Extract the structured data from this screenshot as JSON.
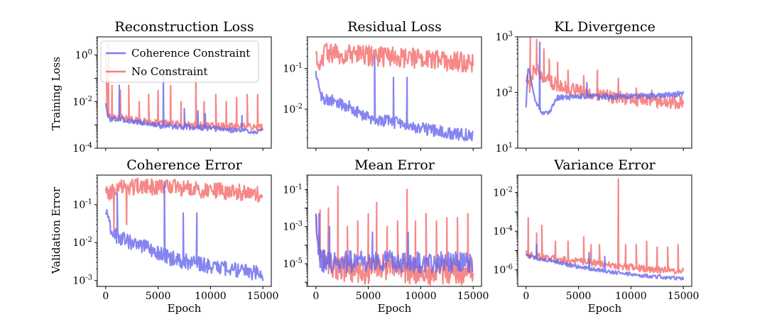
{
  "figure": {
    "xlabel": "Epoch",
    "row_ylabels": [
      "Training Loss",
      "Validation Error"
    ],
    "legend": [
      {
        "label": "Coherence Constraint",
        "color": "#6666ee"
      },
      {
        "label": "No Constraint",
        "color": "#f46a6a"
      }
    ],
    "overlap_color": "#a8306e"
  },
  "chart_data": [
    {
      "type": "line",
      "title": "Reconstruction Loss",
      "yscale": "log",
      "xlim": [
        -800,
        15800
      ],
      "ylim": [
        0.0001,
        6
      ],
      "yticks": [
        0.0001,
        0.01,
        1
      ],
      "ytick_labels": [
        "10^-4",
        "10^-2",
        "10^0"
      ],
      "xticks": [
        0,
        5000,
        10000,
        15000
      ],
      "xtick_labels": [],
      "series": [
        {
          "name": "Coherence Constraint",
          "color": "#6666ee",
          "noise": 0.12,
          "x": [
            0,
            150,
            400,
            2000,
            5000,
            8000,
            11000,
            15000
          ],
          "values": [
            0.01,
            0.0025,
            0.0018,
            0.0016,
            0.00095,
            0.0008,
            0.00065,
            0.0005
          ],
          "spikes": [
            {
              "x": 1300,
              "y": 0.05
            },
            {
              "x": 5500,
              "y": 0.2
            },
            {
              "x": 7500,
              "y": 0.005
            },
            {
              "x": 8800,
              "y": 0.004
            },
            {
              "x": 9500,
              "y": 0.003
            },
            {
              "x": 13000,
              "y": 0.0025
            }
          ]
        },
        {
          "name": "No Constraint",
          "color": "#f46a6a",
          "noise": 0.15,
          "x": [
            0,
            150,
            400,
            1500,
            3000,
            6000,
            10000,
            15000
          ],
          "values": [
            1.5,
            0.003,
            0.002,
            0.002,
            0.0015,
            0.0011,
            0.0009,
            0.0008
          ],
          "spikes": [
            {
              "x": 250,
              "y": 3
            },
            {
              "x": 600,
              "y": 0.05
            },
            {
              "x": 1400,
              "y": 0.03
            },
            {
              "x": 2200,
              "y": 0.05
            },
            {
              "x": 3200,
              "y": 0.01
            },
            {
              "x": 4100,
              "y": 0.02
            },
            {
              "x": 5000,
              "y": 0.03
            },
            {
              "x": 6200,
              "y": 0.05
            },
            {
              "x": 7200,
              "y": 0.01
            },
            {
              "x": 8600,
              "y": 0.2
            },
            {
              "x": 9400,
              "y": 0.01
            },
            {
              "x": 10500,
              "y": 0.02
            },
            {
              "x": 11500,
              "y": 0.01
            },
            {
              "x": 12500,
              "y": 0.015
            },
            {
              "x": 13500,
              "y": 0.02
            },
            {
              "x": 14500,
              "y": 0.02
            }
          ]
        }
      ]
    },
    {
      "type": "line",
      "title": "Residual Loss",
      "yscale": "log",
      "xlim": [
        -800,
        15800
      ],
      "ylim": [
        0.0011,
        0.6
      ],
      "yticks": [
        0.01,
        0.1
      ],
      "ytick_labels": [
        "10^-2",
        "10^-1"
      ],
      "xticks": [
        0,
        5000,
        10000,
        15000
      ],
      "xtick_labels": [],
      "series": [
        {
          "name": "Coherence Constraint",
          "color": "#6666ee",
          "noise": 0.15,
          "x": [
            0,
            200,
            500,
            1500,
            3000,
            5000,
            8000,
            11000,
            15000
          ],
          "values": [
            0.08,
            0.04,
            0.02,
            0.016,
            0.012,
            0.006,
            0.0045,
            0.003,
            0.0022
          ],
          "spikes": [
            {
              "x": 5600,
              "y": 0.2
            },
            {
              "x": 7400,
              "y": 0.06
            },
            {
              "x": 8700,
              "y": 0.06
            }
          ]
        },
        {
          "name": "No Constraint",
          "color": "#f46a6a",
          "noise": 0.25,
          "x": [
            0,
            200,
            1000,
            3000,
            6000,
            9000,
            12000,
            15000
          ],
          "values": [
            0.2,
            0.15,
            0.25,
            0.22,
            0.2,
            0.18,
            0.16,
            0.14
          ],
          "spikes": []
        }
      ]
    },
    {
      "type": "line",
      "title": "KL Divergence",
      "yscale": "log",
      "xlim": [
        -800,
        15800
      ],
      "ylim": [
        10,
        1000
      ],
      "yticks": [
        10,
        100,
        1000
      ],
      "ytick_labels": [
        "10^1",
        "10^2",
        "10^3"
      ],
      "xticks": [
        0,
        5000,
        10000,
        15000
      ],
      "xtick_labels": [],
      "series": [
        {
          "name": "Coherence Constraint",
          "color": "#6666ee",
          "noise": 0.05,
          "x": [
            0,
            200,
            500,
            1000,
            1500,
            2000,
            3000,
            5000,
            8000,
            12000,
            15000
          ],
          "values": [
            60,
            300,
            150,
            60,
            45,
            40,
            80,
            85,
            85,
            88,
            95
          ],
          "spikes": [
            {
              "x": 1300,
              "y": 800
            },
            {
              "x": 5800,
              "y": 150
            }
          ]
        },
        {
          "name": "No Constraint",
          "color": "#f46a6a",
          "noise": 0.12,
          "x": [
            0,
            300,
            800,
            1500,
            2500,
            4000,
            6000,
            8000,
            10000,
            12000,
            15000
          ],
          "values": [
            200,
            120,
            300,
            200,
            150,
            120,
            100,
            85,
            75,
            70,
            65
          ],
          "spikes": [
            {
              "x": 400,
              "y": 1000
            },
            {
              "x": 1000,
              "y": 900
            },
            {
              "x": 1700,
              "y": 600
            },
            {
              "x": 2200,
              "y": 400
            },
            {
              "x": 3000,
              "y": 350
            },
            {
              "x": 4000,
              "y": 250
            },
            {
              "x": 5500,
              "y": 200
            },
            {
              "x": 6800,
              "y": 250
            },
            {
              "x": 8800,
              "y": 180
            },
            {
              "x": 10500,
              "y": 120
            },
            {
              "x": 12000,
              "y": 110
            }
          ]
        }
      ]
    },
    {
      "type": "line",
      "title": "Coherence Error",
      "yscale": "log",
      "xlim": [
        -800,
        15800
      ],
      "ylim": [
        0.0007,
        0.6
      ],
      "yticks": [
        0.001,
        0.01,
        0.1
      ],
      "ytick_labels": [
        "10^-3",
        "10^-2",
        "10^-1"
      ],
      "xticks": [
        0,
        5000,
        10000,
        15000
      ],
      "xtick_labels": [
        "0",
        "5000",
        "10000",
        "15000"
      ],
      "series": [
        {
          "name": "Coherence Constraint",
          "color": "#6666ee",
          "noise": 0.2,
          "x": [
            0,
            300,
            1000,
            2500,
            4000,
            6000,
            8000,
            11000,
            15000
          ],
          "values": [
            0.06,
            0.03,
            0.015,
            0.01,
            0.007,
            0.004,
            0.003,
            0.0022,
            0.0015
          ],
          "spikes": [
            {
              "x": 1100,
              "y": 0.2
            },
            {
              "x": 5600,
              "y": 0.4
            },
            {
              "x": 7400,
              "y": 0.06
            },
            {
              "x": 8700,
              "y": 0.06
            }
          ]
        },
        {
          "name": "No Constraint",
          "color": "#f46a6a",
          "noise": 0.22,
          "x": [
            0,
            300,
            1000,
            3000,
            6000,
            9000,
            12000,
            15000
          ],
          "values": [
            0.3,
            0.2,
            0.28,
            0.3,
            0.28,
            0.25,
            0.22,
            0.18
          ],
          "spikes": [
            {
              "x": 800,
              "y": 0.02
            },
            {
              "x": 2000,
              "y": 0.03
            }
          ]
        }
      ]
    },
    {
      "type": "line",
      "title": "Mean Error",
      "yscale": "log",
      "xlim": [
        -800,
        15800
      ],
      "ylim": [
        6e-07,
        0.6
      ],
      "yticks": [
        1e-05,
        0.001,
        0.1
      ],
      "ytick_labels": [
        "10^-5",
        "10^-3",
        "10^-1"
      ],
      "xticks": [
        0,
        5000,
        10000,
        15000
      ],
      "xtick_labels": [
        "0",
        "5000",
        "10000",
        "15000"
      ],
      "series": [
        {
          "name": "Coherence Constraint",
          "color": "#6666ee",
          "noise": 0.6,
          "x": [
            0,
            150,
            500,
            1500,
            3000,
            6000,
            9000,
            12000,
            15000
          ],
          "values": [
            0.002,
            0.0001,
            1.5e-05,
            1e-05,
            1.2e-05,
            1.5e-05,
            1.2e-05,
            1.2e-05,
            1.2e-05
          ],
          "spikes": [
            {
              "x": 300,
              "y": 0.005
            },
            {
              "x": 1300,
              "y": 0.001
            },
            {
              "x": 5400,
              "y": 0.0005
            },
            {
              "x": 8800,
              "y": 0.0005
            }
          ]
        },
        {
          "name": "No Constraint",
          "color": "#f46a6a",
          "noise": 0.7,
          "x": [
            0,
            150,
            500,
            1500,
            3000,
            4500,
            6000,
            8000,
            10000,
            12000,
            15000
          ],
          "values": [
            0.002,
            0.0002,
            2e-05,
            8e-06,
            4e-06,
            3e-06,
            8e-06,
            5e-06,
            3e-06,
            4e-06,
            3e-06
          ],
          "spikes": [
            {
              "x": 400,
              "y": 0.008
            },
            {
              "x": 1200,
              "y": 0.01
            },
            {
              "x": 2100,
              "y": 0.15
            },
            {
              "x": 3000,
              "y": 0.001
            },
            {
              "x": 4000,
              "y": 0.002
            },
            {
              "x": 5000,
              "y": 0.005
            },
            {
              "x": 5800,
              "y": 0.02
            },
            {
              "x": 6800,
              "y": 0.001
            },
            {
              "x": 7800,
              "y": 0.002
            },
            {
              "x": 8700,
              "y": 0.1
            },
            {
              "x": 9500,
              "y": 0.002
            },
            {
              "x": 10500,
              "y": 0.005
            },
            {
              "x": 11500,
              "y": 0.002
            },
            {
              "x": 12500,
              "y": 0.003
            },
            {
              "x": 13500,
              "y": 0.003
            },
            {
              "x": 14500,
              "y": 0.005
            }
          ]
        }
      ]
    },
    {
      "type": "line",
      "title": "Variance Error",
      "yscale": "log",
      "xlim": [
        -800,
        15800
      ],
      "ylim": [
        1.4e-07,
        0.08
      ],
      "yticks": [
        1e-06,
        0.0001,
        0.01
      ],
      "ytick_labels": [
        "10^-6",
        "10^-4",
        "10^-2"
      ],
      "xticks": [
        0,
        5000,
        10000,
        15000
      ],
      "xtick_labels": [
        "0",
        "5000",
        "10000",
        "15000"
      ],
      "series": [
        {
          "name": "Coherence Constraint",
          "color": "#6666ee",
          "noise": 0.1,
          "x": [
            0,
            200,
            1000,
            2500,
            4000,
            6000,
            8000,
            11000,
            15000
          ],
          "values": [
            8e-06,
            5e-06,
            4e-06,
            3e-06,
            1.8e-06,
            1.2e-06,
            8e-07,
            5e-07,
            3.5e-07
          ],
          "spikes": [
            {
              "x": 1000,
              "y": 2e-05
            },
            {
              "x": 6000,
              "y": 8e-06
            },
            {
              "x": 7500,
              "y": 5e-06
            }
          ]
        },
        {
          "name": "No Constraint",
          "color": "#f46a6a",
          "noise": 0.18,
          "x": [
            0,
            200,
            1000,
            2500,
            4000,
            6000,
            8000,
            11000,
            15000
          ],
          "values": [
            1e-05,
            6e-06,
            5e-06,
            4e-06,
            3e-06,
            2.5e-06,
            1.8e-06,
            1.2e-06,
            8e-07
          ],
          "spikes": [
            {
              "x": 200,
              "y": 0.0005
            },
            {
              "x": 1000,
              "y": 8e-05
            },
            {
              "x": 1500,
              "y": 0.0002
            },
            {
              "x": 2800,
              "y": 3e-05
            },
            {
              "x": 4000,
              "y": 3e-05
            },
            {
              "x": 5500,
              "y": 5e-05
            },
            {
              "x": 6200,
              "y": 2e-05
            },
            {
              "x": 7000,
              "y": 2e-05
            },
            {
              "x": 8800,
              "y": 0.05
            },
            {
              "x": 9500,
              "y": 2e-05
            },
            {
              "x": 10500,
              "y": 2e-05
            },
            {
              "x": 11500,
              "y": 3e-05
            },
            {
              "x": 12500,
              "y": 1.5e-05
            },
            {
              "x": 13500,
              "y": 1.5e-05
            },
            {
              "x": 14500,
              "y": 2e-05
            }
          ]
        }
      ]
    }
  ]
}
